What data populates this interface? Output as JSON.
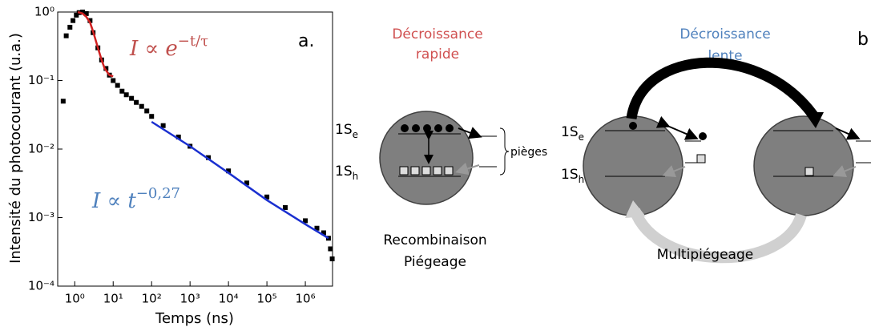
{
  "chart_data": {
    "type": "scatter",
    "panel": "a.",
    "xlabel": "Temps (ns)",
    "ylabel": "Intensité du photocourant (u.a.)",
    "xlog": true,
    "ylog": true,
    "xlim": [
      0.36,
      5100000
    ],
    "ylim": [
      0.0001,
      1
    ],
    "xticks": [
      {
        "value": 1,
        "label": "10⁰"
      },
      {
        "value": 10,
        "label": "10¹"
      },
      {
        "value": 100,
        "label": "10²"
      },
      {
        "value": 1000,
        "label": "10³"
      },
      {
        "value": 10000,
        "label": "10⁴"
      },
      {
        "value": 100000,
        "label": "10⁵"
      },
      {
        "value": 1000000,
        "label": "10⁶"
      }
    ],
    "yticks": [
      {
        "value": 0.0001,
        "label": "10⁻⁴"
      },
      {
        "value": 0.001,
        "label": "10⁻³"
      },
      {
        "value": 0.01,
        "label": "10⁻²"
      },
      {
        "value": 0.1,
        "label": "10⁻¹"
      },
      {
        "value": 1,
        "label": "10⁰"
      }
    ],
    "series": [
      {
        "mode": "markers",
        "color": "#000000",
        "x": [
          0.5,
          0.6,
          0.75,
          0.9,
          1.1,
          1.3,
          1.6,
          2,
          2.5,
          3,
          4,
          5,
          6.5,
          8,
          10,
          13,
          17,
          22,
          30,
          40,
          55,
          75,
          100,
          200,
          500,
          1000,
          3000,
          10000,
          30000,
          100000,
          300000,
          1000000,
          2000000,
          3000000,
          4000000,
          4500000,
          5000000
        ],
        "y": [
          0.05,
          0.45,
          0.6,
          0.75,
          0.9,
          0.98,
          1,
          0.95,
          0.75,
          0.5,
          0.3,
          0.2,
          0.15,
          0.12,
          0.1,
          0.085,
          0.07,
          0.062,
          0.055,
          0.048,
          0.042,
          0.036,
          0.03,
          0.022,
          0.015,
          0.011,
          0.0075,
          0.0048,
          0.0032,
          0.002,
          0.0014,
          0.0009,
          0.0007,
          0.0006,
          0.0005,
          0.00035,
          0.00025
        ]
      },
      {
        "mode": "line",
        "color": "#d02020",
        "x": [
          1.2,
          1.6,
          2,
          2.5,
          3,
          4,
          5,
          6,
          8,
          10
        ],
        "y": [
          1,
          0.95,
          0.85,
          0.7,
          0.52,
          0.3,
          0.2,
          0.15,
          0.12,
          0.115
        ]
      },
      {
        "mode": "line",
        "color": "#1a2fd0",
        "x": [
          100,
          1000,
          10000,
          100000,
          1000000,
          4000000
        ],
        "y": [
          0.025,
          0.011,
          0.0045,
          0.0018,
          0.0008,
          0.0005
        ]
      }
    ],
    "annotations": [
      {
        "base": "I ∝ e",
        "sup": "−t/τ",
        "color": "#c0504d"
      },
      {
        "base": "I ∝ t",
        "sup": "−0,27",
        "color": "#4f81bd"
      }
    ]
  },
  "diagram": {
    "fast": {
      "title": [
        "Décroissance",
        "rapide"
      ],
      "level_e": [
        "1S",
        "e"
      ],
      "level_h": [
        "1S",
        "h"
      ],
      "traps": "pièges",
      "caption": [
        "Recombinaison",
        "Piégeage"
      ]
    },
    "slow": {
      "title": [
        "Décroissance",
        "lente"
      ],
      "level_e": [
        "1S",
        "e"
      ],
      "level_h": [
        "1S",
        "h"
      ],
      "caption": "Multipiégeage"
    },
    "panel": "b"
  }
}
